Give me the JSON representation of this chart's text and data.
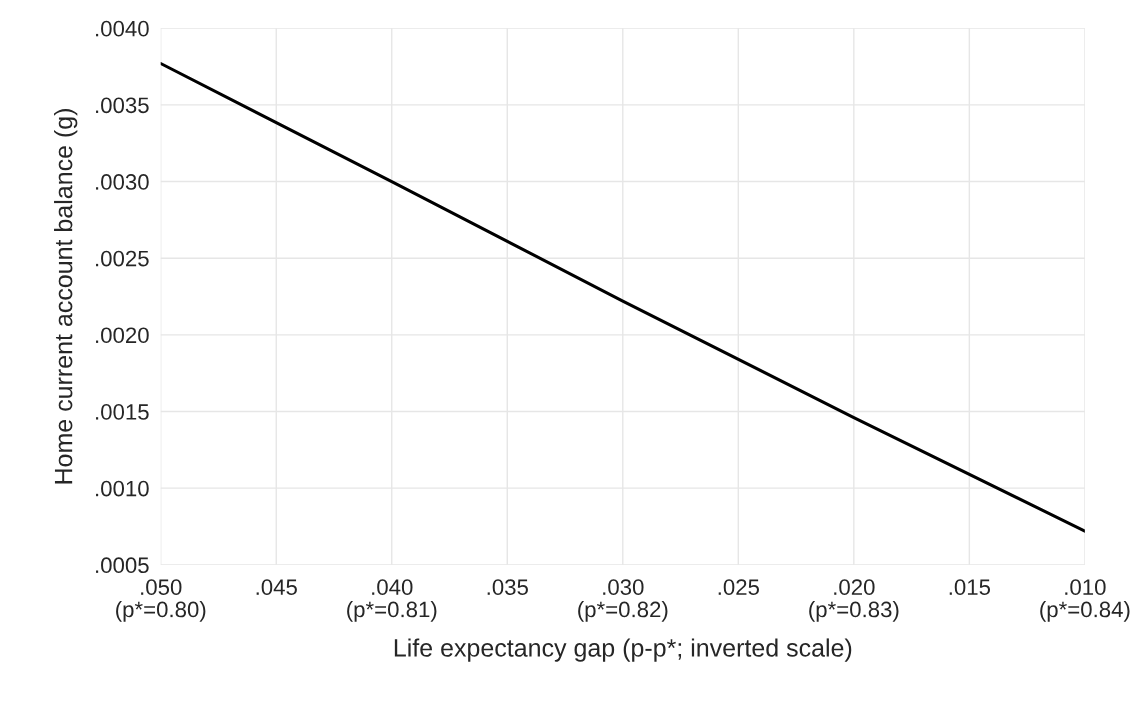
{
  "chart_data": {
    "type": "line",
    "xlabel": "Life expectancy gap (p-p*; inverted scale)",
    "ylabel": "Home current account balance (g)",
    "x": [
      0.05,
      0.04,
      0.03,
      0.02,
      0.01
    ],
    "series": [
      {
        "color": "#000000",
        "values": [
          0.00377,
          0.003,
          0.00222,
          0.00146,
          0.00072
        ]
      }
    ],
    "xlim": [
      0.05,
      0.01
    ],
    "xticks": [
      {
        "value": 0.05,
        "label": ".050\n(p*=0.80)"
      },
      {
        "value": 0.045,
        "label": ".045"
      },
      {
        "value": 0.04,
        "label": ".040\n(p*=0.81)"
      },
      {
        "value": 0.035,
        "label": ".035"
      },
      {
        "value": 0.03,
        "label": ".030\n(p*=0.82)"
      },
      {
        "value": 0.025,
        "label": ".025"
      },
      {
        "value": 0.02,
        "label": ".020\n(p*=0.83)"
      },
      {
        "value": 0.015,
        "label": ".015"
      },
      {
        "value": 0.01,
        "label": ".010\n(p*=0.84)"
      }
    ],
    "ylim": [
      0.0005,
      0.004
    ],
    "yticks": [
      {
        "value": 0.0005,
        "label": ".0005"
      },
      {
        "value": 0.001,
        "label": ".0010"
      },
      {
        "value": 0.0015,
        "label": ".0015"
      },
      {
        "value": 0.002,
        "label": ".0020"
      },
      {
        "value": 0.0025,
        "label": ".0025"
      },
      {
        "value": 0.003,
        "label": ".0030"
      },
      {
        "value": 0.0035,
        "label": ".0035"
      },
      {
        "value": 0.004,
        "label": ".0040"
      }
    ],
    "grid": true,
    "marker": "none",
    "line_style": "solid"
  }
}
